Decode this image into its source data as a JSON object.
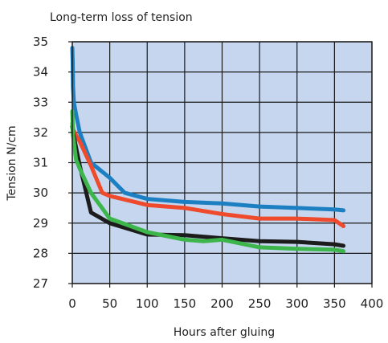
{
  "chart_data": {
    "type": "line",
    "title": "Long-term loss of tension",
    "xlabel": "Hours after gluing",
    "ylabel": "Tension N/cm",
    "xlim": [
      0,
      400
    ],
    "ylim": [
      27,
      35
    ],
    "x_ticks": [
      "0",
      "50",
      "100",
      "150",
      "200",
      "250",
      "300",
      "350",
      "400"
    ],
    "y_ticks": [
      "27",
      "28",
      "29",
      "30",
      "31",
      "32",
      "33",
      "34",
      "35"
    ],
    "grid": true,
    "plot_background": "#c5d6ee",
    "series": [
      {
        "color": "#1c7fc2",
        "x": [
          0,
          0.5,
          1,
          2,
          5,
          10,
          25,
          50,
          70,
          100,
          150,
          200,
          250,
          300,
          350,
          362
        ],
        "y": [
          34.8,
          34.3,
          33.5,
          33.0,
          32.6,
          32.0,
          31.0,
          30.5,
          30.0,
          29.8,
          29.7,
          29.65,
          29.55,
          29.5,
          29.45,
          29.42
        ]
      },
      {
        "color": "#ee4a2b",
        "x": [
          0,
          1,
          5,
          10,
          25,
          40,
          50,
          100,
          150,
          200,
          250,
          300,
          350,
          362
        ],
        "y": [
          32.3,
          32.1,
          31.9,
          31.7,
          30.9,
          30.0,
          29.9,
          29.6,
          29.5,
          29.3,
          29.15,
          29.15,
          29.1,
          28.9
        ]
      },
      {
        "color": "#1c1c1c",
        "x": [
          0,
          1,
          5,
          10,
          25,
          50,
          100,
          150,
          200,
          250,
          300,
          350,
          362
        ],
        "y": [
          32.2,
          32.0,
          31.5,
          30.9,
          29.35,
          29.0,
          28.62,
          28.6,
          28.5,
          28.4,
          28.38,
          28.3,
          28.25
        ]
      },
      {
        "color": "#3cb54a",
        "x": [
          0,
          1,
          5,
          10,
          25,
          50,
          100,
          150,
          175,
          200,
          250,
          300,
          350,
          362
        ],
        "y": [
          32.7,
          31.9,
          31.1,
          30.8,
          30.0,
          29.15,
          28.7,
          28.45,
          28.4,
          28.45,
          28.2,
          28.15,
          28.12,
          28.07
        ]
      }
    ]
  }
}
